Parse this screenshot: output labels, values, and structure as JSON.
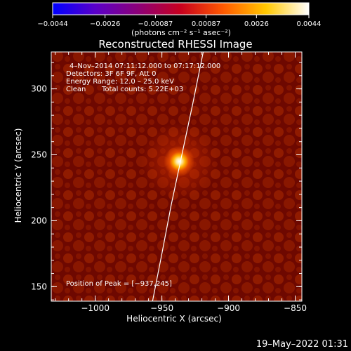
{
  "chart_data": {
    "type": "heatmap",
    "title": "Reconstructed RHESSI Image",
    "xlabel": "Heliocentric X (arcsec)",
    "ylabel": "Heliocentric Y (arcsec)",
    "xlim": [
      -1033,
      -845
    ],
    "ylim": [
      139,
      328
    ],
    "x_ticks": [
      {
        "value": -1000,
        "label": "−1000"
      },
      {
        "value": -950,
        "label": "−950"
      },
      {
        "value": -900,
        "label": "−900"
      },
      {
        "value": -850,
        "label": "−850"
      }
    ],
    "y_ticks": [
      {
        "value": 150,
        "label": "150"
      },
      {
        "value": 200,
        "label": "200"
      },
      {
        "value": 250,
        "label": "250"
      },
      {
        "value": 300,
        "label": "300"
      }
    ],
    "colorbar": {
      "range": [
        -0.0044,
        0.0044
      ],
      "ticks": [
        {
          "value": -0.0044,
          "label": "−0.0044"
        },
        {
          "value": -0.0026,
          "label": "−0.0026"
        },
        {
          "value": -0.00087,
          "label": "−0.00087"
        },
        {
          "value": 0.00087,
          "label": "0.00087"
        },
        {
          "value": 0.0026,
          "label": "0.0026"
        },
        {
          "value": 0.0044,
          "label": "0.0044"
        }
      ],
      "unit_label": "(photons cm⁻² s⁻¹ asec⁻²)",
      "colors": [
        "#0000ff",
        "#5a00c8",
        "#8c0078",
        "#c8001e",
        "#ff5a00",
        "#ffc800",
        "#ffffff"
      ]
    },
    "annotations": [
      "4–Nov–2014 07:11:12.000 to 07:17:12.000",
      "Detectors: 3F 6F 9F, Att 0",
      "Energy Range: 12.0 – 25.0 keV",
      "Clean",
      "Total counts: 5.22E+03"
    ],
    "peak_label": "Position of Peak = [−937,245]",
    "peak": {
      "x": -937,
      "y": 245
    },
    "limb_points": [
      {
        "x": -957,
        "y": 139
      },
      {
        "x": -950,
        "y": 175
      },
      {
        "x": -943,
        "y": 212
      },
      {
        "x": -935,
        "y": 250
      },
      {
        "x": -927,
        "y": 288
      },
      {
        "x": -919,
        "y": 328
      }
    ],
    "colors": {
      "background": "#000000",
      "image_base": "#6e0800",
      "image_texture": "#aa2a00",
      "peak_core": "#ffffff",
      "limb": "#ffffff"
    }
  },
  "footer_timestamp": "19–May–2022 01:31"
}
